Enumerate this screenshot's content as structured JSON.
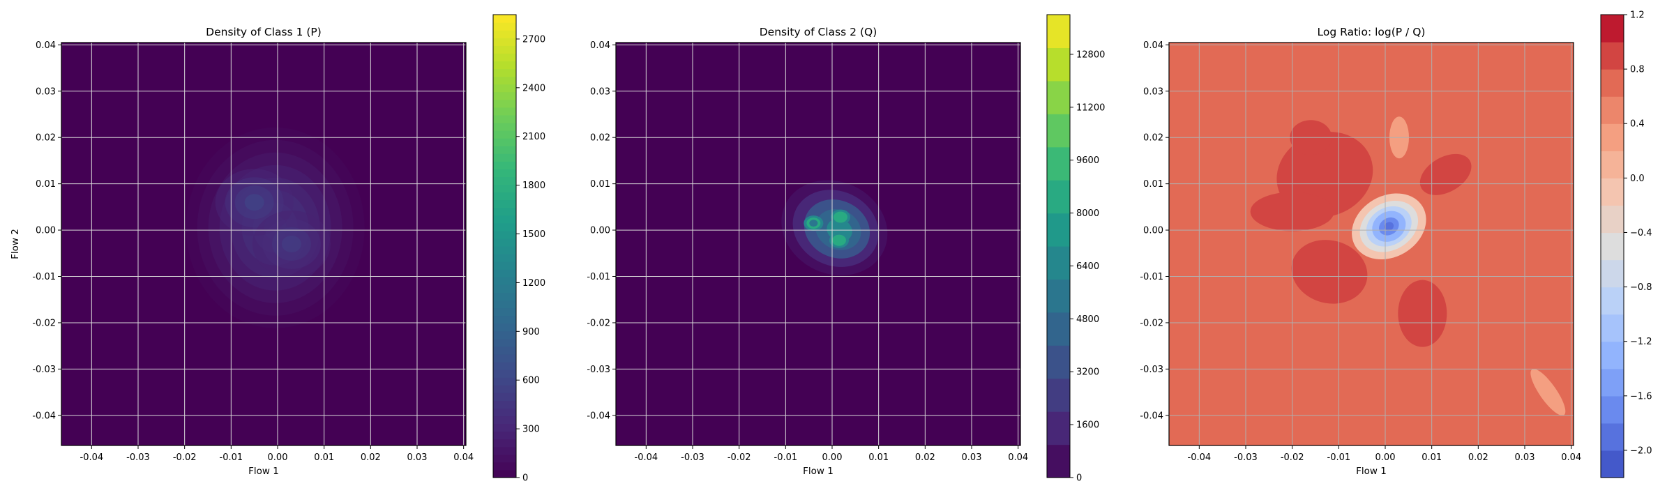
{
  "chart_data": [
    {
      "type": "heatmap",
      "title": "Density of Class 1 (P)",
      "xlabel": "Flow 1",
      "ylabel": "Flow 2",
      "xlim": [
        -0.0465,
        0.0405
      ],
      "ylim": [
        -0.0465,
        0.0405
      ],
      "xticks": [
        "-0.04",
        "-0.03",
        "-0.02",
        "-0.01",
        "0.00",
        "0.01",
        "0.02",
        "0.03",
        "0.04"
      ],
      "yticks": [
        "-0.04",
        "-0.03",
        "-0.02",
        "-0.01",
        "0.00",
        "0.01",
        "0.02",
        "0.03",
        "0.04"
      ],
      "tick_values": [
        -0.04,
        -0.03,
        -0.02,
        -0.01,
        0.0,
        0.01,
        0.02,
        0.03,
        0.04
      ],
      "grid": true,
      "colormap": "viridis",
      "colorbar": {
        "min": 0,
        "max": 2850,
        "ticks": [
          0,
          300,
          600,
          900,
          1200,
          1500,
          1800,
          2100,
          2400,
          2700
        ],
        "tick_labels": [
          "0",
          "300",
          "600",
          "900",
          "1200",
          "1500",
          "1800",
          "2100",
          "2400",
          "2700"
        ]
      },
      "peaks": [
        {
          "x": -0.005,
          "y": 0.006,
          "value": 750
        },
        {
          "x": 0.003,
          "y": -0.003,
          "value": 650
        }
      ],
      "background_value": 0
    },
    {
      "type": "heatmap",
      "title": "Density of Class 2 (Q)",
      "xlabel": "Flow 1",
      "ylabel": "",
      "xlim": [
        -0.0465,
        0.0405
      ],
      "ylim": [
        -0.0465,
        0.0405
      ],
      "xticks": [
        "-0.04",
        "-0.03",
        "-0.02",
        "-0.01",
        "0.00",
        "0.01",
        "0.02",
        "0.03",
        "0.04"
      ],
      "yticks": [
        "-0.04",
        "-0.03",
        "-0.02",
        "-0.01",
        "0.00",
        "0.01",
        "0.02",
        "0.03",
        "0.04"
      ],
      "tick_values": [
        -0.04,
        -0.03,
        -0.02,
        -0.01,
        0.0,
        0.01,
        0.02,
        0.03,
        0.04
      ],
      "grid": true,
      "colormap": "viridis",
      "colorbar": {
        "min": 0,
        "max": 14000,
        "ticks": [
          0,
          1600,
          3200,
          4800,
          6400,
          8000,
          9600,
          11200,
          12800
        ],
        "tick_labels": [
          "0",
          "1600",
          "3200",
          "4800",
          "6400",
          "8000",
          "9600",
          "11200",
          "12800"
        ]
      },
      "peaks": [
        {
          "x": 0.0018,
          "y": 0.0028,
          "value": 8400
        },
        {
          "x": 0.0015,
          "y": -0.0022,
          "value": 8900
        },
        {
          "x": -0.004,
          "y": 0.0015,
          "value": 5000
        }
      ],
      "background_value": 0
    },
    {
      "type": "heatmap",
      "title": "Log Ratio: log(P / Q)",
      "xlabel": "Flow 1",
      "ylabel": "",
      "xlim": [
        -0.0465,
        0.0405
      ],
      "ylim": [
        -0.0465,
        0.0405
      ],
      "xticks": [
        "-0.04",
        "-0.03",
        "-0.02",
        "-0.01",
        "0.00",
        "0.01",
        "0.02",
        "0.03",
        "0.04"
      ],
      "yticks": [
        "-0.04",
        "-0.03",
        "-0.02",
        "-0.01",
        "0.00",
        "0.01",
        "0.02",
        "0.03",
        "0.04"
      ],
      "tick_values": [
        -0.04,
        -0.03,
        -0.02,
        -0.01,
        0.0,
        0.01,
        0.02,
        0.03,
        0.04
      ],
      "grid": true,
      "colormap": "coolwarm",
      "colorbar": {
        "min": -2.2,
        "max": 1.2,
        "ticks": [
          -2.0,
          -1.6,
          -1.2,
          -0.8,
          -0.4,
          0.0,
          0.4,
          0.8,
          1.2
        ],
        "tick_labels": [
          "−2.0",
          "−1.6",
          "−1.2",
          "−0.8",
          "−0.4",
          "0.0",
          "0.4",
          "0.8",
          "1.2"
        ]
      },
      "background_value": 0.7,
      "regions": [
        {
          "x": 0.001,
          "y": 0.0005,
          "value": -1.9
        },
        {
          "x": -0.012,
          "y": 0.015,
          "value": 0.85
        },
        {
          "x": -0.012,
          "y": -0.008,
          "value": 0.85
        },
        {
          "x": 0.007,
          "y": -0.017,
          "value": 0.85
        }
      ]
    }
  ]
}
